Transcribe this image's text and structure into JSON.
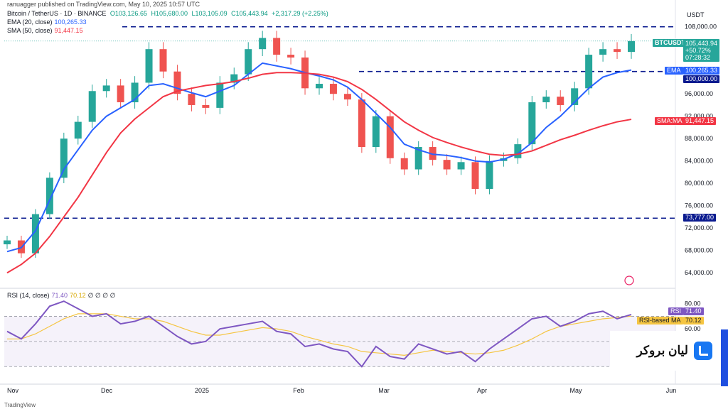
{
  "header_text": "ranuagger published on TradingView.com, May 10, 2025 10:57 UTC",
  "legend": {
    "title": "Bitcoin / TetherUS · 1D · BINANCE",
    "open": "O103,126.65",
    "high": "H105,680.00",
    "low": "L103,105.09",
    "close": "C105,443.94",
    "change": "+2,317.29 (+2.25%)",
    "ema": "EMA (20, close)",
    "ema_value": "100,265.33",
    "sma": "SMA (50, close)",
    "sma_value": "91,447.15",
    "rsi": "RSI (14, close)",
    "rsi_value": "71.40",
    "rsi_ma_value": "70.12",
    "rsi_extra": "∅ ∅ ∅ ∅"
  },
  "price_axis": {
    "currency": "USDT",
    "ticks": [
      "108,000.00",
      "96,000.00",
      "92,000.00",
      "88,000.00",
      "84,000.00",
      "80,000.00",
      "76,000.00",
      "72,000.00",
      "68,000.00",
      "64,000.00"
    ]
  },
  "rsi_axis": {
    "ticks": [
      "80.00",
      "60.00"
    ]
  },
  "tags": {
    "symbol": "BTCUSDT",
    "price": "105,443.94",
    "pct": "+50.72%",
    "countdown": "07:28:32",
    "ema_label": "EMA",
    "ema_value": "100,265.33",
    "level_100k": "100,000.00",
    "sma_label": "SMA:MA",
    "sma_value": "91,447.15",
    "level_73k": "73,777.00",
    "rsi_label": "RSI",
    "rsi_value": "71.40",
    "rsi_ma_label": "RSI-based MA",
    "rsi_ma_value": "70.12"
  },
  "time_axis": [
    "Nov",
    "Dec",
    "2025",
    "Feb",
    "Mar",
    "Apr",
    "May",
    "Jun"
  ],
  "watermark": "لیان بروکر",
  "footer": "TradingView",
  "colors": {
    "up": "#26a69a",
    "down": "#ef5350",
    "ema": "#2962ff",
    "sma": "#f23645",
    "rsi": "#7e57c2",
    "rsi_ma": "#f5c542",
    "level": "#0b1b8f"
  },
  "chart_data": {
    "type": "candlestick",
    "title": "Bitcoin / TetherUS · 1D · BINANCE",
    "ylim": [
      62000,
      110500
    ],
    "x": [
      "Nov",
      "Dec",
      "2025",
      "Feb",
      "Mar",
      "Apr",
      "May"
    ],
    "close_series": [
      69800,
      67500,
      74500,
      81000,
      88000,
      91000,
      96500,
      97500,
      94500,
      98000,
      104000,
      100000,
      96000,
      94000,
      93500,
      98000,
      99500,
      104000,
      106000,
      103000,
      102500,
      97000,
      97800,
      96000,
      95000,
      86500,
      92000,
      84500,
      82500,
      86500,
      84200,
      82500,
      83800,
      79000,
      84000,
      84500,
      87000,
      94500,
      95500,
      94000,
      97000,
      103000,
      104000,
      103500,
      105443.94
    ],
    "ema_series": [
      67800,
      68500,
      71500,
      77000,
      82500,
      86000,
      89500,
      92000,
      93500,
      95000,
      97500,
      97800,
      97000,
      96200,
      95500,
      96500,
      97500,
      99500,
      101500,
      101000,
      100500,
      99800,
      99200,
      98500,
      97200,
      95000,
      92500,
      90000,
      87000,
      86000,
      85200,
      85000,
      84600,
      84000,
      83800,
      84300,
      85300,
      87300,
      90000,
      92000,
      94500,
      97000,
      99000,
      99800,
      100265.33
    ],
    "sma_series": [
      64000,
      65500,
      67500,
      70500,
      74000,
      77500,
      81500,
      85500,
      89000,
      91500,
      93500,
      95500,
      96500,
      97000,
      97500,
      97800,
      98200,
      98800,
      99500,
      99800,
      99800,
      99700,
      99500,
      99000,
      98200,
      96800,
      95000,
      93000,
      91000,
      89500,
      88200,
      87300,
      86500,
      85800,
      85200,
      85000,
      85200,
      85800,
      86800,
      87800,
      88600,
      89500,
      90300,
      91000,
      91447.15
    ],
    "levels": [
      108000,
      100000,
      73777
    ],
    "rsi": {
      "ylim": [
        20,
        90
      ],
      "bands": [
        70,
        50,
        30
      ],
      "values": [
        58,
        52,
        64,
        78,
        82,
        76,
        70,
        72,
        64,
        66,
        70,
        62,
        54,
        48,
        50,
        60,
        62,
        64,
        66,
        58,
        56,
        46,
        48,
        44,
        42,
        30,
        46,
        38,
        36,
        48,
        44,
        40,
        42,
        34,
        44,
        52,
        60,
        68,
        70,
        62,
        66,
        72,
        74,
        68,
        71.4
      ],
      "ma_values": [
        52,
        52,
        56,
        62,
        68,
        72,
        72,
        72,
        70,
        68,
        68,
        66,
        62,
        58,
        55,
        55,
        57,
        59,
        61,
        60,
        58,
        54,
        51,
        48,
        46,
        42,
        41,
        40,
        39,
        41,
        43,
        42,
        41,
        40,
        41,
        43,
        47,
        52,
        58,
        62,
        64,
        66,
        68,
        69,
        70.12
      ]
    }
  }
}
